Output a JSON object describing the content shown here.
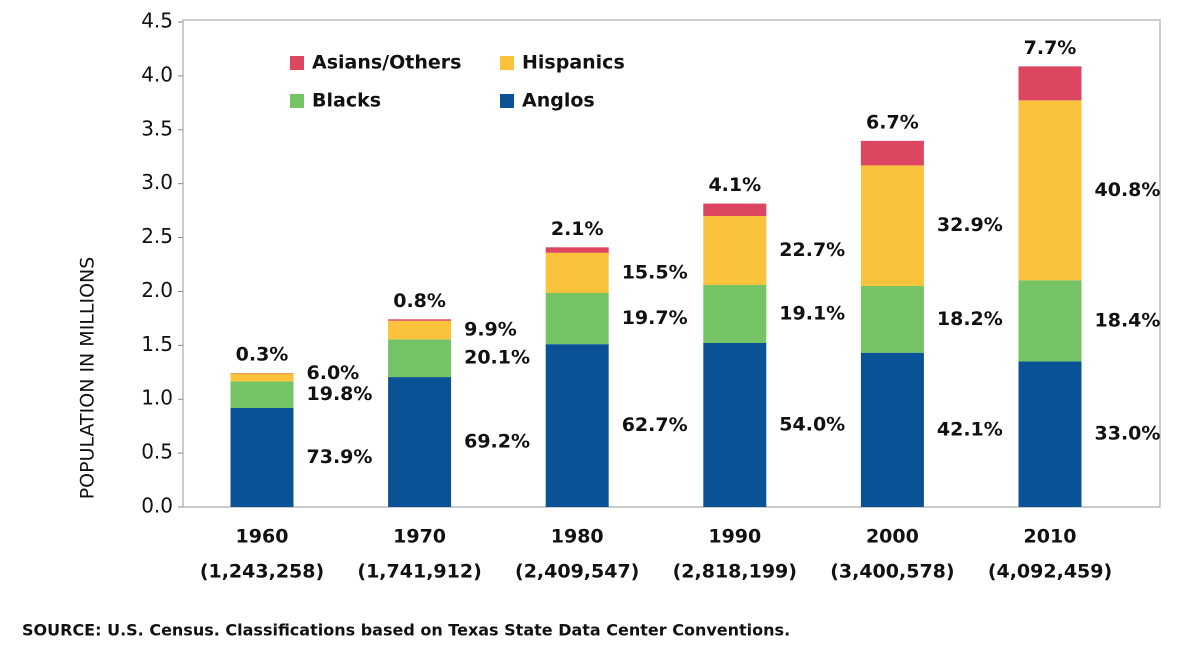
{
  "chart_data": {
    "type": "stacked-bar",
    "ylabel": "POPULATION IN MILLIONS",
    "categories": [
      "1960",
      "1970",
      "1980",
      "1990",
      "2000",
      "2010"
    ],
    "category_totals": [
      "(1,243,258)",
      "(1,741,912)",
      "(2,409,547)",
      "(2,818,199)",
      "(3,400,578)",
      "(4,092,459)"
    ],
    "series": [
      {
        "name": "Anglos",
        "color": "#0a5296",
        "values": [
          0.9188,
          1.2054,
          1.5108,
          1.5218,
          1.4316,
          1.3505
        ],
        "share_labels": [
          "73.9%",
          "69.2%",
          "62.7%",
          "54.0%",
          "42.1%",
          "33.0%"
        ]
      },
      {
        "name": "Blacks",
        "color": "#74c365",
        "values": [
          0.2462,
          0.3501,
          0.4747,
          0.5383,
          0.6189,
          0.753
        ],
        "share_labels": [
          "19.8%",
          "20.1%",
          "19.7%",
          "19.1%",
          "18.2%",
          "18.4%"
        ]
      },
      {
        "name": "Hispanics",
        "color": "#fbc23b",
        "values": [
          0.0746,
          0.1724,
          0.3735,
          0.6397,
          1.1188,
          1.6697
        ],
        "share_labels": [
          "6.0%",
          "9.9%",
          "15.5%",
          "22.7%",
          "32.9%",
          "40.8%"
        ]
      },
      {
        "name": "Asians/Others",
        "color": "#dc4660",
        "values": [
          0.0037,
          0.0139,
          0.0506,
          0.1155,
          0.2278,
          0.3151
        ],
        "share_labels": [
          "0.3%",
          "0.8%",
          "2.1%",
          "4.1%",
          "6.7%",
          "7.7%"
        ]
      }
    ],
    "ylim": [
      0,
      4.5
    ],
    "yticks": [
      {
        "value": 0,
        "label": "0.0"
      },
      0.5,
      {
        "value": 1,
        "label": "1.0"
      },
      1.5,
      {
        "value": 2,
        "label": "2.0"
      },
      2.5,
      {
        "value": 3,
        "label": "3.0"
      },
      3.5,
      {
        "value": 4,
        "label": "4.0"
      },
      4.5
    ],
    "source": "SOURCE: U.S. Census. Classifications based on Texas State Data Center Conventions."
  }
}
